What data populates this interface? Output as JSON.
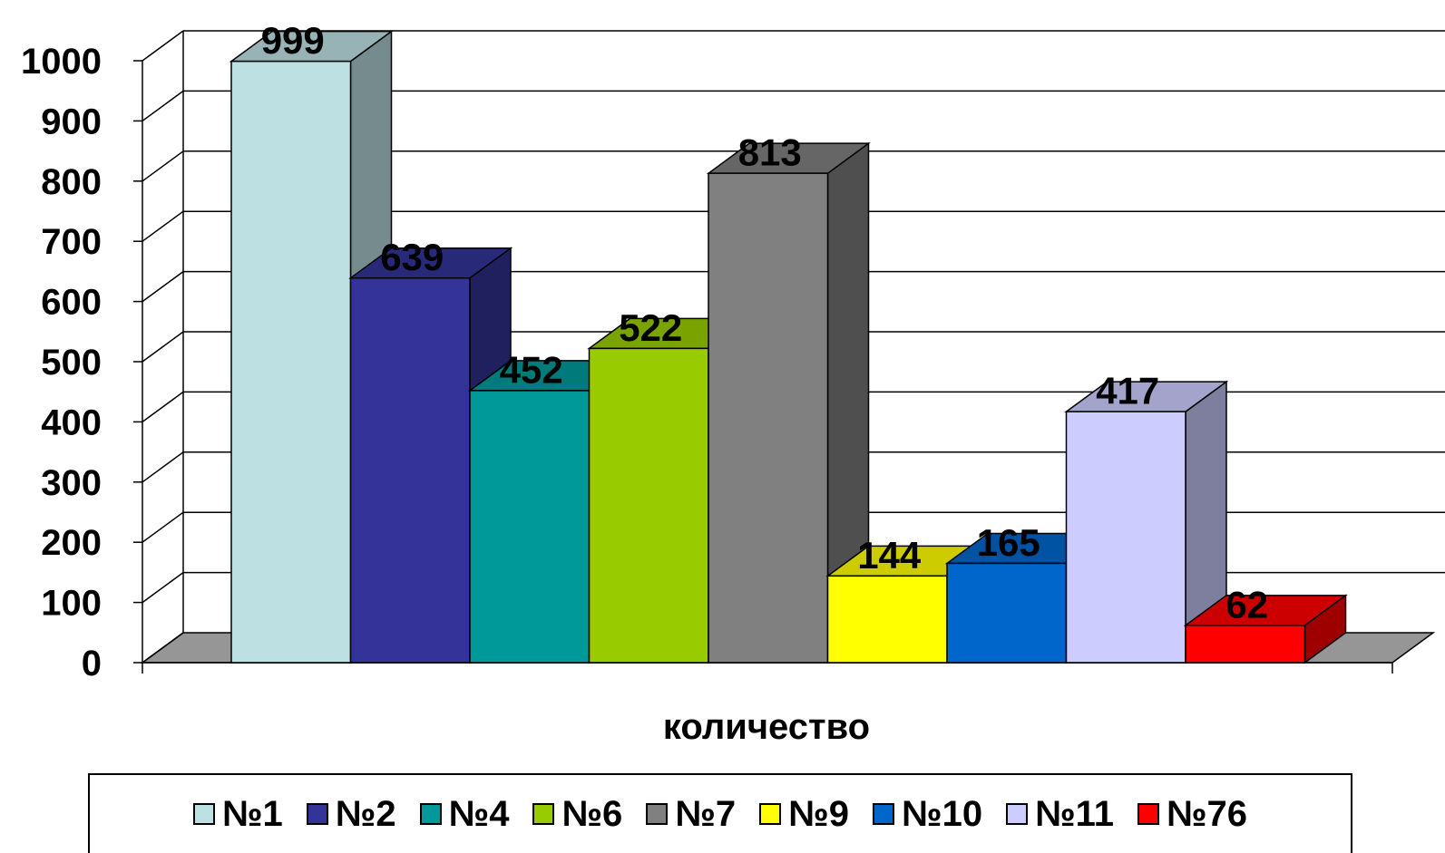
{
  "chart_data": {
    "type": "bar",
    "xlabel": "количество",
    "ylim": [
      0,
      1000
    ],
    "yticks": [
      0,
      100,
      200,
      300,
      400,
      500,
      600,
      700,
      800,
      900,
      1000
    ],
    "grid": true,
    "legend_position": "bottom",
    "series": [
      {
        "name": "№1",
        "value": 999,
        "color": "#bde0e3"
      },
      {
        "name": "№2",
        "value": 639,
        "color": "#333399"
      },
      {
        "name": "№4",
        "value": 452,
        "color": "#009999"
      },
      {
        "name": "№6",
        "value": 522,
        "color": "#99cc00"
      },
      {
        "name": "№7",
        "value": 813,
        "color": "#808080"
      },
      {
        "name": "№9",
        "value": 144,
        "color": "#ffff00"
      },
      {
        "name": "№10",
        "value": 165,
        "color": "#0066cc"
      },
      {
        "name": "№11",
        "value": 417,
        "color": "#ccccff"
      },
      {
        "name": "№76",
        "value": 62,
        "color": "#ff0000"
      }
    ]
  }
}
